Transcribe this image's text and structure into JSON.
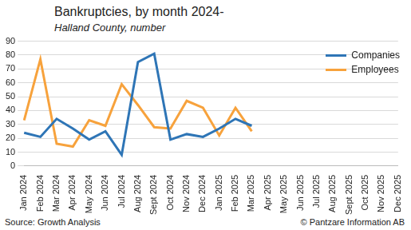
{
  "chart_data": {
    "type": "line",
    "title": "Bankruptcies, by month 2024-",
    "subtitle": "Halland County, number",
    "annotations": [
      "Source: Growth Analysis",
      "© Pantzare Information AB"
    ],
    "categories": [
      "Jan 2024",
      "Feb 2024",
      "Mar 2024",
      "Apr 2024",
      "May 2024",
      "Jun 2024",
      "Jul 2024",
      "Aug 2024",
      "Sept 2024",
      "Oct 2024",
      "Nov 2024",
      "Dec 2024",
      "Jan 2025",
      "Feb 2025",
      "Mar 2025",
      "Apr 2025",
      "May 2025",
      "Jun 2025",
      "Jul 2025",
      "Aug 2025",
      "Sept 2025",
      "Oct 2025",
      "Nov 2025",
      "Dec 2025"
    ],
    "series": [
      {
        "name": "Companies",
        "color": "#2e75b6",
        "values": [
          24,
          21,
          34,
          27,
          19,
          25,
          8,
          75,
          81,
          19,
          23,
          21,
          27,
          34,
          29,
          null,
          null,
          null,
          null,
          null,
          null,
          null,
          null,
          null
        ]
      },
      {
        "name": "Employees",
        "color": "#f7a23c",
        "values": [
          33,
          77,
          16,
          14,
          33,
          29,
          59,
          44,
          28,
          27,
          47,
          42,
          22,
          42,
          25,
          null,
          null,
          null,
          null,
          null,
          null,
          null,
          null,
          null
        ]
      }
    ],
    "ylim": [
      0,
      90
    ],
    "yticks": [
      0,
      10,
      20,
      30,
      40,
      50,
      60,
      70,
      80,
      90
    ],
    "grid": true,
    "legend": "top-right"
  }
}
